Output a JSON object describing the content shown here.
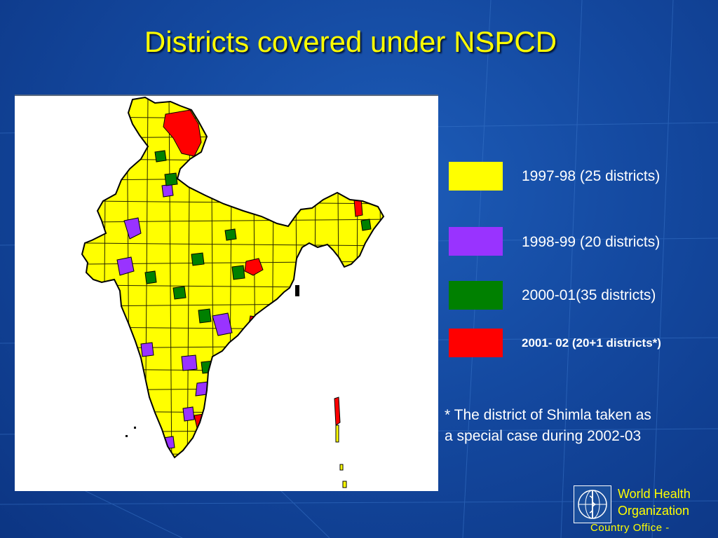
{
  "slide": {
    "title": "Districts covered under NSPCD"
  },
  "legend": [
    {
      "color": "#ffff00",
      "label": "1997-98 (25 districts)"
    },
    {
      "color": "#9933ff",
      "label": "1998-99 (20 districts)"
    },
    {
      "color": "#008000",
      "label": "2000-01(35 districts)"
    },
    {
      "color": "#ff0000",
      "label": "2001- 02 (20+1 districts*)"
    }
  ],
  "note": {
    "line1": "* The district of Shimla taken as",
    "line2": "a special case during 2002-03"
  },
  "who": {
    "name_line1": "World Health",
    "name_line2": "Organization",
    "office": "Country Office -"
  },
  "colors": {
    "background": "#1449a0",
    "title": "#ffff00",
    "map_base": "#ffff00",
    "district_outline": "#000000"
  },
  "map": {
    "region": "India",
    "legend_colors_in_use": [
      "#ffff00",
      "#9933ff",
      "#008000",
      "#ff0000"
    ]
  }
}
